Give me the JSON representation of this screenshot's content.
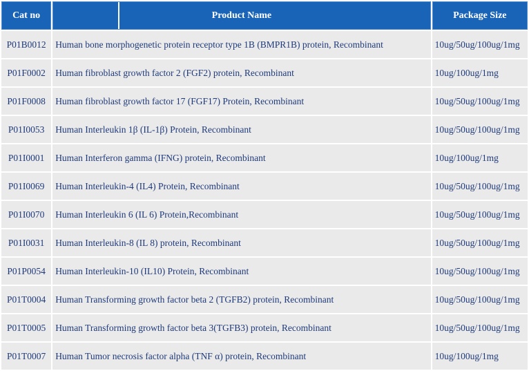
{
  "table": {
    "headers": {
      "cat": "Cat no",
      "product": "Product Name",
      "package": "Package Size"
    },
    "rows": [
      {
        "cat": "P01B0012",
        "product": "Human bone morphogenetic protein receptor type 1B (BMPR1B) protein, Recombinant",
        "package": "10ug/50ug/100ug/1mg"
      },
      {
        "cat": "P01F0002",
        "product": "Human fibroblast growth factor 2 (FGF2) protein, Recombinant",
        "package": "10ug/100ug/1mg"
      },
      {
        "cat": "P01F0008",
        "product": "Human fibroblast growth factor 17 (FGF17) Protein, Recombinant",
        "package": "10ug/50ug/100ug/1mg"
      },
      {
        "cat": "P01I0053",
        "product": "Human Interleukin 1β (IL-1β) Protein, Recombinant",
        "package": "10ug/50ug/100ug/1mg"
      },
      {
        "cat": "P01I0001",
        "product": "Human Interferon gamma (IFNG) protein, Recombinant",
        "package": "10ug/100ug/1mg"
      },
      {
        "cat": "P01I0069",
        "product": "Human Interleukin-4 (IL4) Protein, Recombinant",
        "package": "10ug/50ug/100ug/1mg"
      },
      {
        "cat": "P01I0070",
        "product": "Human Interleukin 6 (IL 6) Protein,Recombinant",
        "package": "10ug/50ug/100ug/1mg"
      },
      {
        "cat": "P01I0031",
        "product": "Human Interleukin-8 (IL 8) protein, Recombinant",
        "package": "10ug/50ug/100ug/1mg"
      },
      {
        "cat": "P01P0054",
        "product": "Human Interleukin-10 (IL10) Protein, Recombinant",
        "package": "10ug/50ug/100ug/1mg"
      },
      {
        "cat": "P01T0004",
        "product": "Human Transforming growth factor beta 2 (TGFB2) protein, Recombinant",
        "package": "10ug/50ug/100ug/1mg"
      },
      {
        "cat": "P01T0005",
        "product": "Human Transforming growth factor beta 3(TGFB3) protein, Recombinant",
        "package": "10ug/50ug/100ug/1mg"
      },
      {
        "cat": "P01T0007",
        "product": "Human Tumor necrosis factor alpha (TNF α) protein, Recombinant",
        "package": "10ug/100ug/1mg"
      }
    ]
  }
}
